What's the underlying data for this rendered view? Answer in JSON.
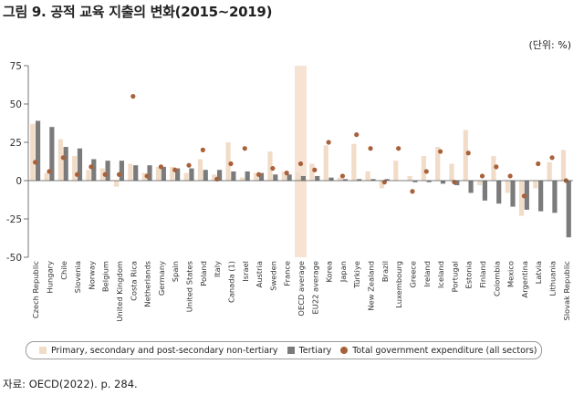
{
  "title": "그림 9. 공적 교육 지출의 변화(2015~2019)",
  "unit_label": "(단위: %)",
  "source": "자료: OECD(2022). p. 284.",
  "colors": {
    "primary": "#f1dcc8",
    "tertiary": "#7b7b7b",
    "total": "#a8613a",
    "highlight": "#f6e3d4"
  },
  "chart_data": {
    "type": "bar",
    "title": "그림 9. 공적 교육 지출의 변화(2015~2019)",
    "ylabel": "(단위: %)",
    "ylim": [
      -50,
      75
    ],
    "yticks": [
      75,
      50,
      25,
      0,
      -25,
      -50
    ],
    "highlight_category": "OECD average",
    "categories": [
      "Czech Republic",
      "Hungary",
      "Chile",
      "Slovenia",
      "Norway",
      "Belgium",
      "United Kingdom",
      "Costa Rica",
      "Netherlands",
      "Germany",
      "Spain",
      "United States",
      "Poland",
      "Italy",
      "Canada (1)",
      "Israel",
      "Austria",
      "Sweden",
      "France",
      "OECD average",
      "EU22 average",
      "Korea",
      "Japan",
      "Türkiye",
      "New Zealand",
      "Brazil",
      "Luxembourg",
      "Greece",
      "Ireland",
      "Iceland",
      "Portugal",
      "Estonia",
      "Finland",
      "Colombia",
      "Mexico",
      "Argentina",
      "Latvia",
      "Lithuania",
      "Slovak Republic"
    ],
    "series": [
      {
        "name": "Primary, secondary and post-secondary non-tertiary",
        "kind": "bar",
        "values": [
          37,
          5,
          27,
          16,
          7,
          8,
          -4,
          11,
          5,
          9,
          9,
          5,
          14,
          4,
          25,
          2,
          5,
          19,
          6,
          5,
          11,
          23,
          2,
          24,
          6,
          -5,
          13,
          3,
          16,
          22,
          11,
          33,
          -3,
          16,
          -8,
          -23,
          -5,
          12,
          20
        ]
      },
      {
        "name": "Tertiary",
        "kind": "bar",
        "values": [
          39,
          35,
          22,
          21,
          14,
          13,
          13,
          10,
          10,
          9,
          8,
          8,
          7,
          7,
          6,
          6,
          5,
          4,
          4,
          3,
          3,
          2,
          1,
          1,
          1,
          1,
          0,
          -1,
          -1,
          -2,
          -3,
          -8,
          -13,
          -15,
          -17,
          -19,
          -20,
          -21,
          -37
        ]
      },
      {
        "name": "Total government expenditure (all sectors)",
        "kind": "dot",
        "values": [
          12,
          6,
          15,
          4,
          9,
          4,
          4,
          55,
          3,
          9,
          7,
          10,
          20,
          1,
          11,
          21,
          4,
          8,
          5,
          11,
          7,
          25,
          3,
          30,
          21,
          -1,
          21,
          -7,
          6,
          19,
          -1,
          18,
          3,
          9,
          3,
          -10,
          11,
          15,
          0
        ]
      }
    ]
  },
  "legend": {
    "primary": "Primary, secondary and post-secondary non-tertiary",
    "tertiary": "Tertiary",
    "total": "Total government expenditure (all sectors)"
  }
}
